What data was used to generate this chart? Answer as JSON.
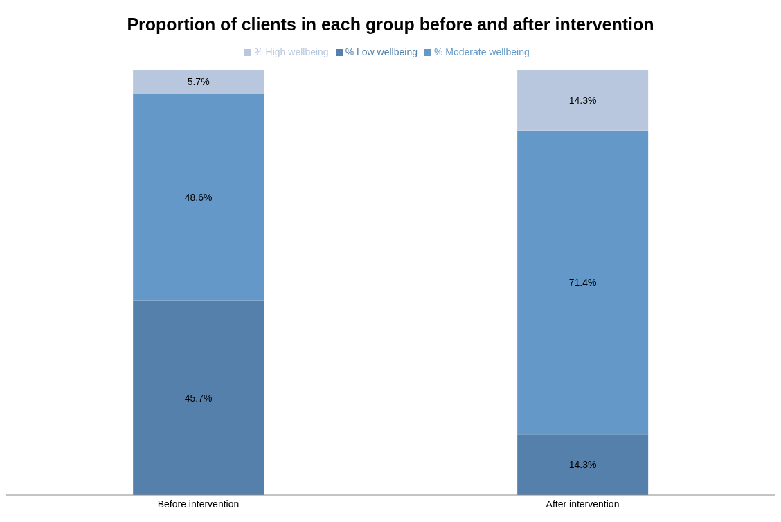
{
  "chart_data": {
    "type": "bar",
    "title": "Proportion of clients in each group before and after intervention",
    "categories": [
      "Before intervention",
      "After intervention"
    ],
    "stacked": true,
    "ylim": [
      0,
      100
    ],
    "tick_labels": "x",
    "legend": "top",
    "grid": false,
    "series": [
      {
        "name": "% Low wellbeing",
        "color": "#5580ab",
        "values": [
          45.7,
          14.3
        ],
        "value_labels": [
          "45.7%",
          "14.3%"
        ]
      },
      {
        "name": "% Moderate wellbeing",
        "color": "#6398c8",
        "values": [
          48.6,
          71.4
        ],
        "value_labels": [
          "48.6%",
          "71.4%"
        ]
      },
      {
        "name": "% High wellbeing",
        "color": "#b8c7de",
        "values": [
          5.7,
          14.3
        ],
        "value_labels": [
          "5.7%",
          "14.3%"
        ]
      }
    ]
  }
}
